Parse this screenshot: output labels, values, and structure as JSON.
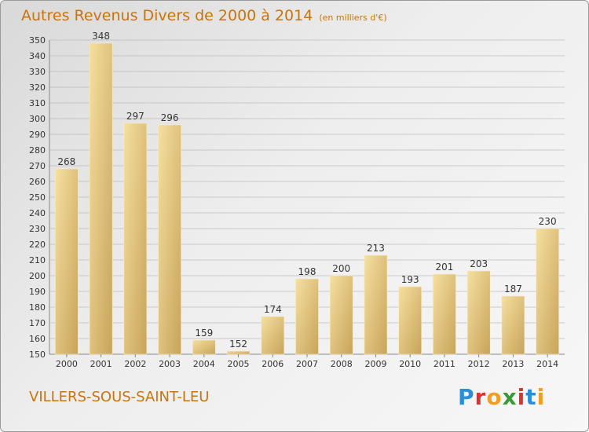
{
  "header": {
    "title": "Autres Revenus Divers de 2000 à 2014",
    "unit": "(en milliers d'€)"
  },
  "footer": {
    "commune": "VILLERS-SOUS-SAINT-LEU",
    "logo_text": "Proxiti",
    "logo_colors": [
      "#2a8fd6",
      "#e0322c",
      "#f0a020",
      "#3a9a3a",
      "#e0322c",
      "#2a8fd6",
      "#f0a020"
    ]
  },
  "colors": {
    "title": "#c8740e",
    "bar_light": "#f5dfa0",
    "bar_dark": "#c8a45a",
    "grid": "#bdbdbd",
    "label": "#333333"
  },
  "chart_data": {
    "type": "bar",
    "categories": [
      "2000",
      "2001",
      "2002",
      "2003",
      "2004",
      "2005",
      "2006",
      "2007",
      "2008",
      "2009",
      "2010",
      "2011",
      "2012",
      "2013",
      "2014"
    ],
    "values": [
      268,
      348,
      297,
      296,
      159,
      152,
      174,
      198,
      200,
      213,
      193,
      201,
      203,
      187,
      230
    ],
    "data_labels": [
      "268",
      "348",
      "297",
      "296",
      "159",
      "152",
      "174",
      "198",
      "200",
      "213",
      "193",
      "201",
      "203",
      "187",
      "230"
    ],
    "ylim": [
      150,
      350
    ],
    "ytick_step": 10,
    "grid": true,
    "title": "Autres Revenus Divers de 2000 à 2014",
    "xlabel": "",
    "ylabel": ""
  }
}
